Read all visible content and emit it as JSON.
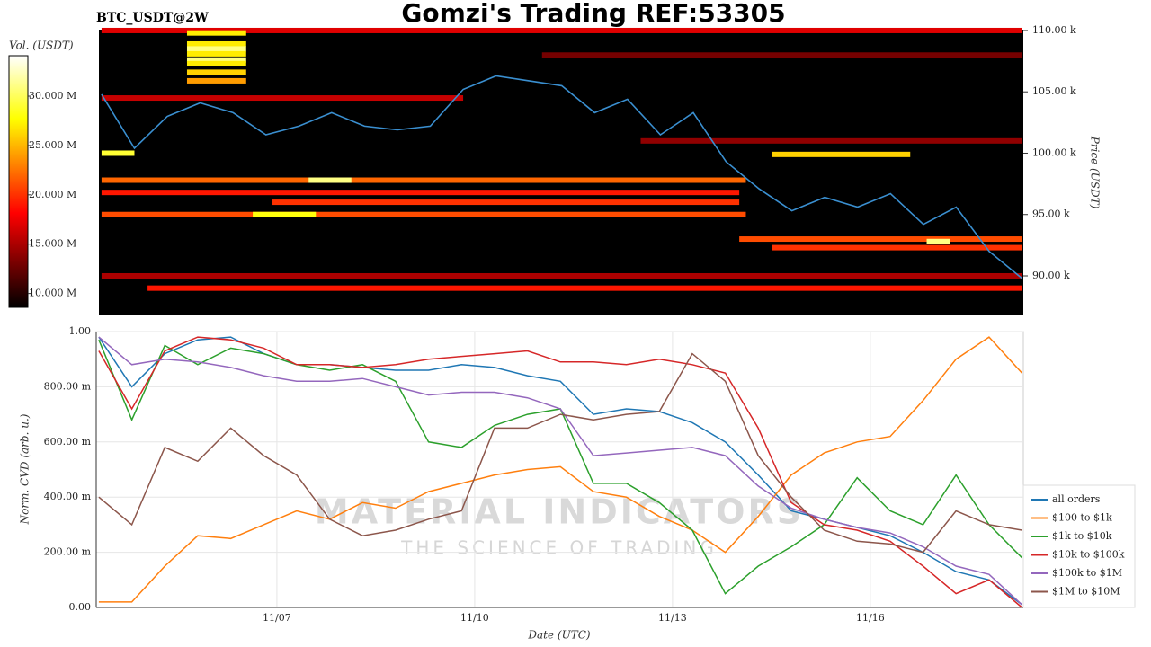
{
  "chart_data": [
    {
      "type": "heatmap",
      "title": "Gomzi's Trading REF:53305",
      "subtitle": "BTC_USDT@2W",
      "ylabel": "Price (USDT)",
      "colorbar_label": "Vol. (USDT)",
      "x": [
        4.3,
        4.8,
        5.3,
        5.8,
        6.3,
        6.8,
        7.3,
        7.8,
        8.3,
        8.8,
        9.3,
        9.8,
        10.3,
        10.8,
        11.3,
        11.8,
        12.3,
        12.8,
        13.3,
        13.8,
        14.3,
        14.8,
        15.3,
        15.8,
        16.3,
        16.8,
        17.3,
        17.8,
        18.3
      ],
      "values": [
        104800,
        100400,
        103000,
        104100,
        103300,
        101500,
        102200,
        103300,
        102200,
        101900,
        102200,
        105200,
        106300,
        105900,
        105500,
        103300,
        104400,
        101500,
        103300,
        99300,
        97100,
        95300,
        96400,
        95600,
        96700,
        94200,
        95600,
        92000,
        89800
      ],
      "line_color": "#3a8fd0",
      "xlim": [
        4.26,
        18.32
      ],
      "ylim": [
        86850,
        110070
      ],
      "yticks": [
        {
          "value": 90000,
          "label": "90.00 k"
        },
        {
          "value": 95000,
          "label": "95.00 k"
        },
        {
          "value": 100000,
          "label": "100.00 k"
        },
        {
          "value": 105000,
          "label": "105.00 k"
        },
        {
          "value": 110000,
          "label": "110.00 k"
        }
      ],
      "clim": [
        8600000,
        34100000
      ],
      "cticks": [
        {
          "value": 10000000,
          "label": "10.000 M"
        },
        {
          "value": 15000000,
          "label": "15.000 M"
        },
        {
          "value": 20000000,
          "label": "20.000 M"
        },
        {
          "value": 25000000,
          "label": "25.000 M"
        },
        {
          "value": 30000000,
          "label": "30.000 M"
        }
      ],
      "bands": [
        {
          "price": 110000,
          "start": 4.3,
          "end": 18.3,
          "volume": 17000000
        },
        {
          "price": 108000,
          "start": 11.0,
          "end": 18.3,
          "volume": 13000000
        },
        {
          "price": 101000,
          "start": 12.5,
          "end": 18.3,
          "volume": 14000000
        },
        {
          "price": 104500,
          "start": 4.3,
          "end": 9.8,
          "volume": 16000000
        },
        {
          "price": 90000,
          "start": 4.3,
          "end": 18.3,
          "volume": 15000000
        },
        {
          "price": 89000,
          "start": 5.0,
          "end": 18.3,
          "volume": 19000000
        },
        {
          "price": 97800,
          "start": 4.3,
          "end": 14.1,
          "volume": 22000000
        },
        {
          "price": 97800,
          "start": 7.45,
          "end": 8.1,
          "volume": 31000000
        },
        {
          "price": 96800,
          "start": 4.3,
          "end": 14.0,
          "volume": 19000000
        },
        {
          "price": 96000,
          "start": 6.9,
          "end": 14.0,
          "volume": 20000000
        },
        {
          "price": 95000,
          "start": 4.3,
          "end": 14.1,
          "volume": 21000000
        },
        {
          "price": 95000,
          "start": 6.6,
          "end": 7.56,
          "volume": 28000000
        },
        {
          "price": 99900,
          "start": 14.5,
          "end": 16.6,
          "volume": 26000000
        },
        {
          "price": 100000,
          "start": 4.3,
          "end": 4.8,
          "volume": 29000000
        },
        {
          "price": 93000,
          "start": 14.0,
          "end": 18.3,
          "volume": 21000000
        },
        {
          "price": 92300,
          "start": 14.5,
          "end": 18.3,
          "volume": 20000000
        },
        {
          "price": 92800,
          "start": 16.85,
          "end": 17.2,
          "volume": 31000000
        },
        {
          "price": 109800,
          "start": 5.6,
          "end": 6.5,
          "volume": 27000000
        },
        {
          "price": 108900,
          "start": 5.6,
          "end": 6.5,
          "volume": 27000000
        },
        {
          "price": 108500,
          "start": 5.6,
          "end": 6.5,
          "volume": 31000000
        },
        {
          "price": 108100,
          "start": 5.6,
          "end": 6.5,
          "volume": 27000000
        },
        {
          "price": 107600,
          "start": 5.6,
          "end": 6.5,
          "volume": 31000000
        },
        {
          "price": 107300,
          "start": 5.6,
          "end": 6.5,
          "volume": 27000000
        },
        {
          "price": 106600,
          "start": 5.6,
          "end": 6.5,
          "volume": 26000000
        },
        {
          "price": 105900,
          "start": 5.6,
          "end": 6.5,
          "volume": 24000000
        }
      ]
    },
    {
      "type": "line",
      "xlabel": "Date (UTC)",
      "ylabel": "Norm. CVD (arb. u.)",
      "x": [
        4.3,
        4.8,
        5.3,
        5.8,
        6.3,
        6.8,
        7.3,
        7.8,
        8.3,
        8.8,
        9.3,
        9.8,
        10.3,
        10.8,
        11.3,
        11.8,
        12.3,
        12.8,
        13.3,
        13.8,
        14.3,
        14.8,
        15.3,
        15.8,
        16.3,
        16.8,
        17.3,
        17.8,
        18.3
      ],
      "xlim": [
        4.26,
        18.32
      ],
      "ylim": [
        0,
        1
      ],
      "xticks": [
        {
          "value": 7,
          "label": "11/07"
        },
        {
          "value": 10,
          "label": "11/10"
        },
        {
          "value": 13,
          "label": "11/13"
        },
        {
          "value": 16,
          "label": "11/16"
        }
      ],
      "yticks": [
        {
          "value": 0,
          "label": "0.00"
        },
        {
          "value": 0.2,
          "label": "200.00 m"
        },
        {
          "value": 0.4,
          "label": "400.00 m"
        },
        {
          "value": 0.6,
          "label": "600.00 m"
        },
        {
          "value": 0.8,
          "label": "800.00 m"
        },
        {
          "value": 1,
          "label": "1.00"
        }
      ],
      "grid": true,
      "legend": "right",
      "annotations": [
        "MATERIAL INDICATORS",
        "THE SCIENCE OF TRADING"
      ],
      "series": [
        {
          "name": "all orders",
          "color": "#1f77b4",
          "values": [
            0.98,
            0.8,
            0.92,
            0.97,
            0.98,
            0.92,
            0.88,
            0.88,
            0.87,
            0.86,
            0.86,
            0.88,
            0.87,
            0.84,
            0.82,
            0.7,
            0.72,
            0.71,
            0.67,
            0.6,
            0.48,
            0.35,
            0.32,
            0.29,
            0.26,
            0.2,
            0.13,
            0.1,
            0.01
          ]
        },
        {
          "name": "$100 to $1k",
          "color": "#ff7f0e",
          "values": [
            0.02,
            0.02,
            0.15,
            0.26,
            0.25,
            0.3,
            0.35,
            0.32,
            0.38,
            0.36,
            0.42,
            0.45,
            0.48,
            0.5,
            0.51,
            0.42,
            0.4,
            0.33,
            0.28,
            0.2,
            0.33,
            0.48,
            0.56,
            0.6,
            0.62,
            0.75,
            0.9,
            0.98,
            0.85
          ]
        },
        {
          "name": "$1k to $10k",
          "color": "#2ca02c",
          "values": [
            0.97,
            0.68,
            0.95,
            0.88,
            0.94,
            0.92,
            0.88,
            0.86,
            0.88,
            0.82,
            0.6,
            0.58,
            0.66,
            0.7,
            0.72,
            0.45,
            0.45,
            0.38,
            0.28,
            0.05,
            0.15,
            0.22,
            0.3,
            0.47,
            0.35,
            0.3,
            0.48,
            0.3,
            0.18
          ]
        },
        {
          "name": "$10k to $100k",
          "color": "#d62728",
          "values": [
            0.93,
            0.72,
            0.93,
            0.98,
            0.97,
            0.94,
            0.88,
            0.88,
            0.87,
            0.88,
            0.9,
            0.91,
            0.92,
            0.93,
            0.89,
            0.89,
            0.88,
            0.9,
            0.88,
            0.85,
            0.65,
            0.38,
            0.3,
            0.28,
            0.24,
            0.15,
            0.05,
            0.1,
            0.0
          ]
        },
        {
          "name": "$100k to $1M",
          "color": "#9467bd",
          "values": [
            0.98,
            0.88,
            0.9,
            0.89,
            0.87,
            0.84,
            0.82,
            0.82,
            0.83,
            0.8,
            0.77,
            0.78,
            0.78,
            0.76,
            0.72,
            0.55,
            0.56,
            0.57,
            0.58,
            0.55,
            0.44,
            0.36,
            0.32,
            0.29,
            0.27,
            0.22,
            0.15,
            0.12,
            0.01
          ]
        },
        {
          "name": "$1M to $10M",
          "color": "#8c564b",
          "values": [
            0.4,
            0.3,
            0.58,
            0.53,
            0.65,
            0.55,
            0.48,
            0.32,
            0.26,
            0.28,
            0.32,
            0.35,
            0.65,
            0.65,
            0.7,
            0.68,
            0.7,
            0.71,
            0.92,
            0.82,
            0.55,
            0.4,
            0.28,
            0.24,
            0.23,
            0.2,
            0.35,
            0.3,
            0.28
          ]
        }
      ]
    }
  ]
}
